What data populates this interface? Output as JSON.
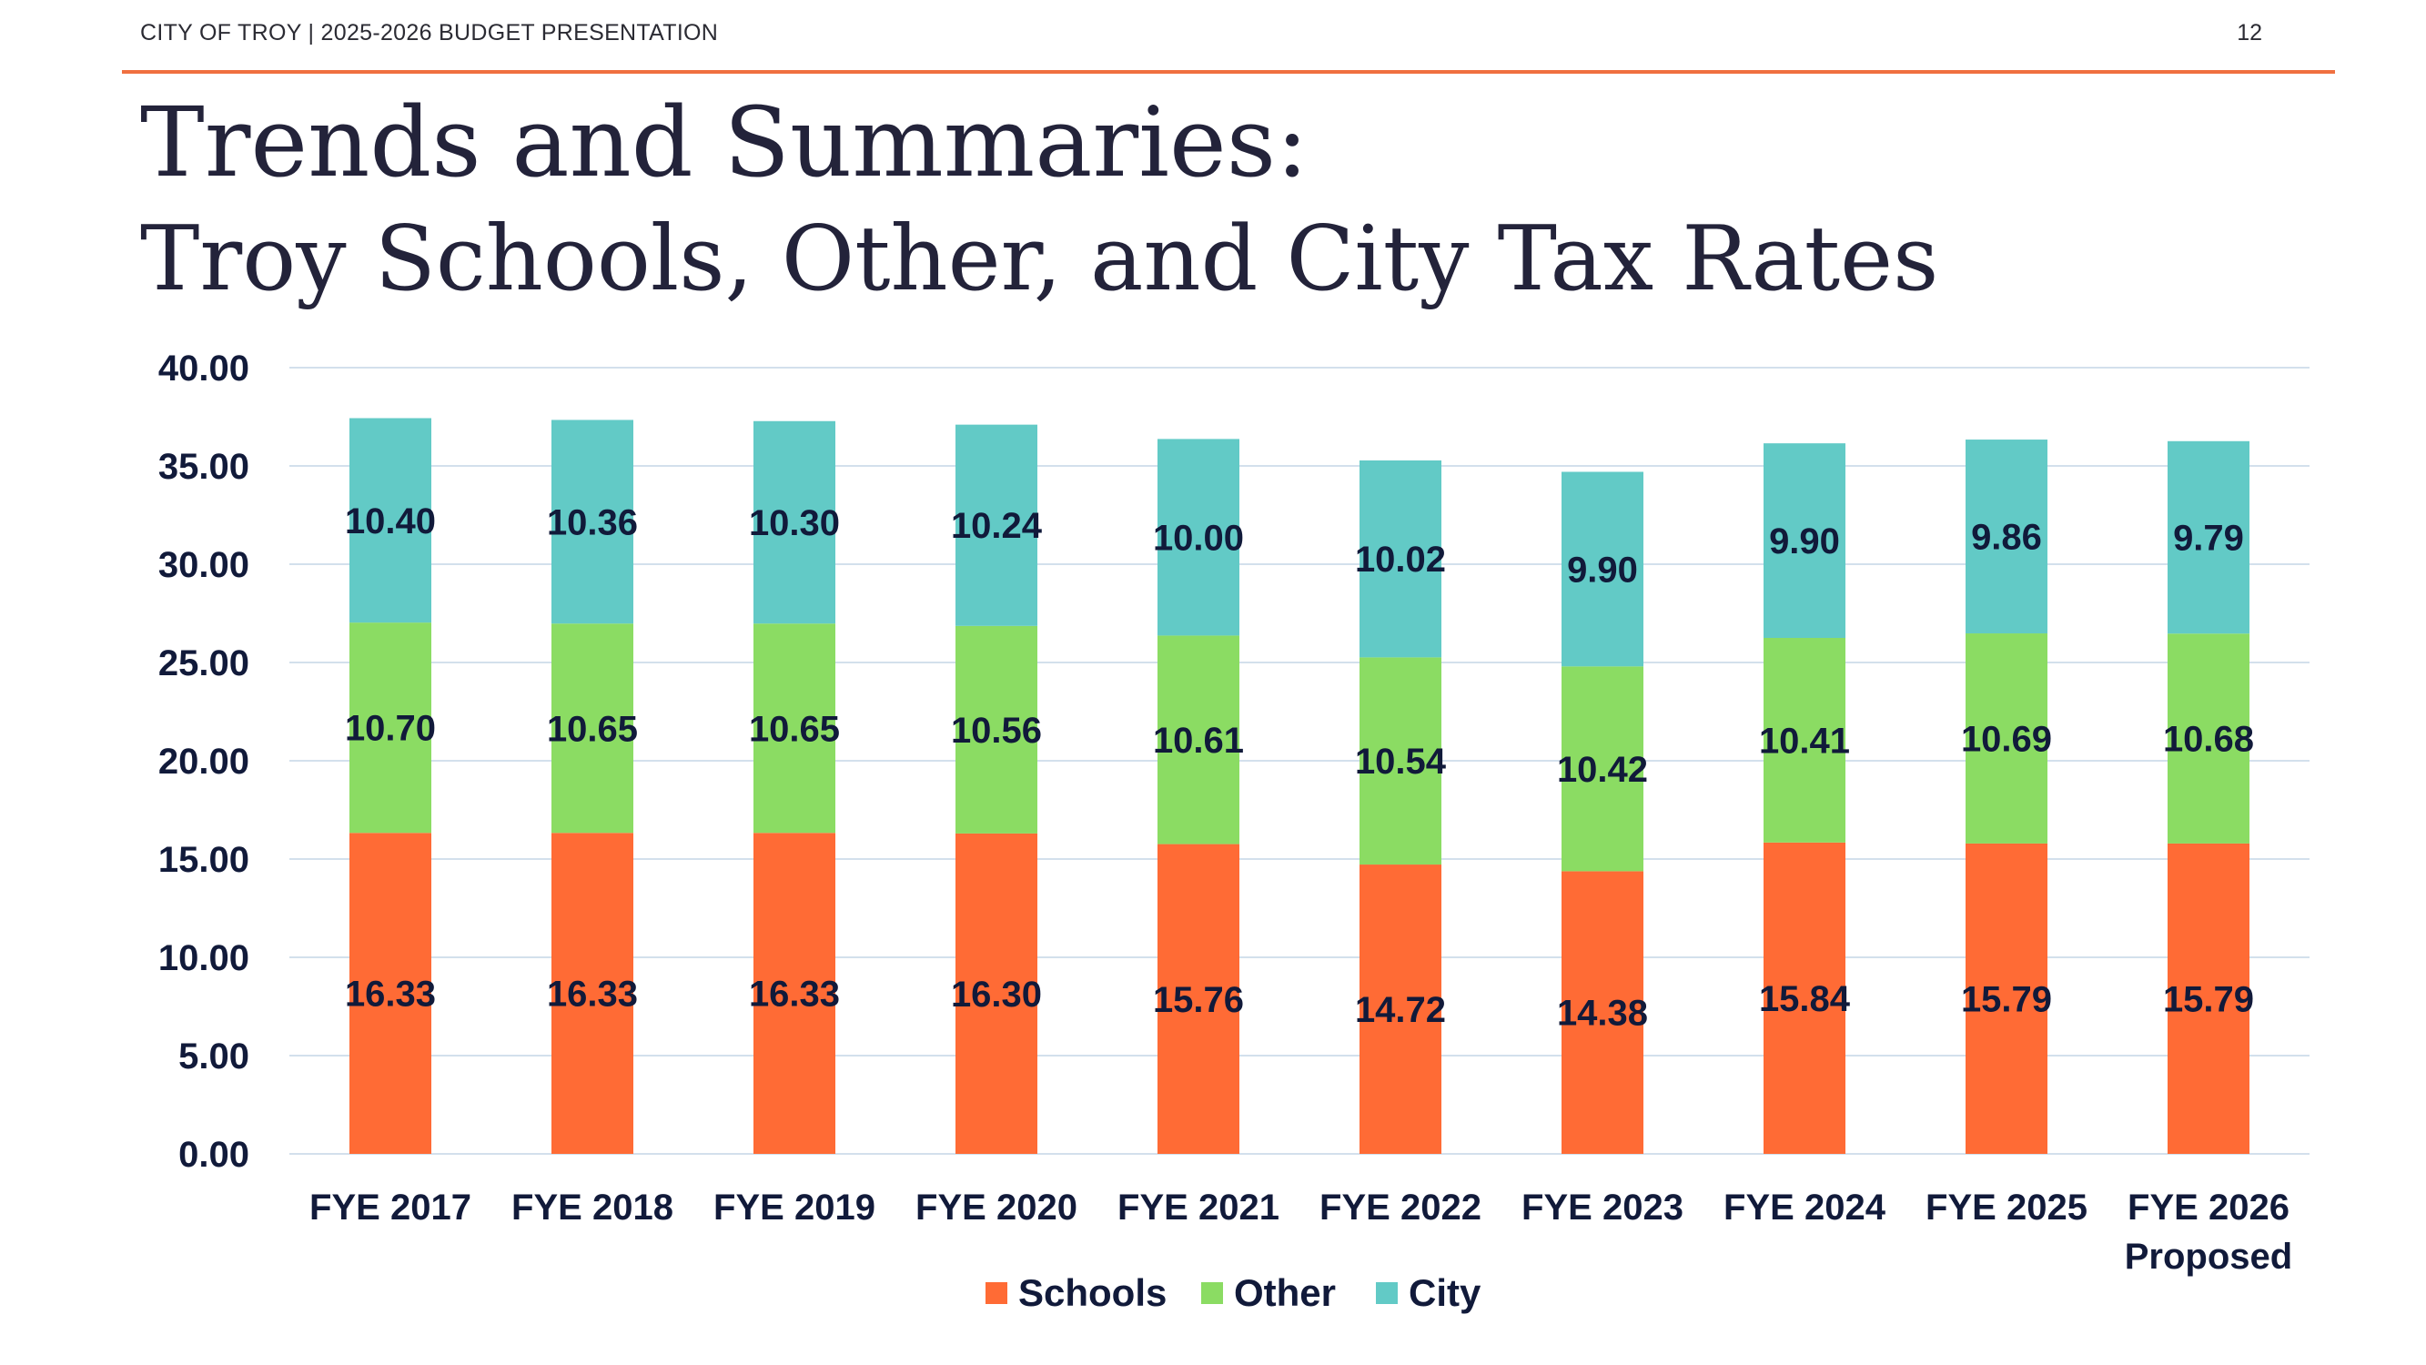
{
  "header": {
    "left_text": "CITY OF TROY | 2025-2026 BUDGET PRESENTATION",
    "page_number": "12",
    "accent_color": "#f07040"
  },
  "slide": {
    "title": "Trends and Summaries:",
    "subtitle": "Troy Schools, Other, and City Tax Rates"
  },
  "chart_data": {
    "type": "bar",
    "stacked": true,
    "categories": [
      [
        "FYE 2017"
      ],
      [
        "FYE 2018"
      ],
      [
        "FYE 2019"
      ],
      [
        "FYE 2020"
      ],
      [
        "FYE 2021"
      ],
      [
        "FYE 2022"
      ],
      [
        "FYE 2023"
      ],
      [
        "FYE 2024"
      ],
      [
        "FYE 2025"
      ],
      [
        "FYE 2026",
        "Proposed"
      ]
    ],
    "series": [
      {
        "name": "Schools",
        "color": "#ff6b35",
        "values": [
          16.33,
          16.33,
          16.33,
          16.3,
          15.76,
          14.72,
          14.38,
          15.84,
          15.79,
          15.79
        ],
        "labels": [
          "16.33",
          "16.33",
          "16.33",
          "16.30",
          "15.76",
          "14.72",
          "14.38",
          "15.84",
          "15.79",
          "15.79"
        ]
      },
      {
        "name": "Other",
        "color": "#8bdc63",
        "values": [
          10.7,
          10.65,
          10.65,
          10.56,
          10.61,
          10.54,
          10.42,
          10.41,
          10.69,
          10.68
        ],
        "labels": [
          "10.70",
          "10.65",
          "10.65",
          "10.56",
          "10.61",
          "10.54",
          "10.42",
          "10.41",
          "10.69",
          "10.68"
        ]
      },
      {
        "name": "City",
        "color": "#62cac6",
        "values": [
          10.4,
          10.36,
          10.3,
          10.24,
          10.0,
          10.02,
          9.9,
          9.9,
          9.86,
          9.79
        ],
        "labels": [
          "10.40",
          "10.36",
          "10.30",
          "10.24",
          "10.00",
          "10.02",
          "9.90",
          "9.90",
          "9.86",
          "9.79"
        ]
      }
    ],
    "ylim": [
      0,
      40
    ],
    "yticks": [
      "0.00",
      "5.00",
      "10.00",
      "15.00",
      "20.00",
      "25.00",
      "30.00",
      "35.00",
      "40.00"
    ],
    "grid": true,
    "legend_position": "bottom"
  }
}
